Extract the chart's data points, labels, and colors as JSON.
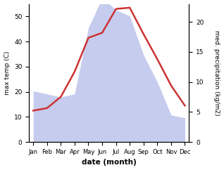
{
  "months": [
    "Jan",
    "Feb",
    "Mar",
    "Apr",
    "May",
    "Jun",
    "Jul",
    "Aug",
    "Sep",
    "Oct",
    "Nov",
    "Dec"
  ],
  "x": [
    0,
    1,
    2,
    3,
    4,
    5,
    6,
    7,
    8,
    9,
    10,
    11
  ],
  "temperature": [
    12.5,
    13.5,
    18.0,
    28.0,
    41.5,
    43.5,
    53.0,
    53.5,
    43.0,
    33.0,
    22.5,
    14.5
  ],
  "precipitation": [
    8.5,
    8.0,
    7.5,
    8.0,
    19.0,
    24.0,
    22.0,
    21.0,
    14.5,
    10.0,
    4.5,
    4.0
  ],
  "temp_color": "#cc3333",
  "precip_fill_color": "#c5ccee",
  "ylabel_left": "max temp (C)",
  "ylabel_right": "med. precipitation (kg/m2)",
  "xlabel": "date (month)",
  "ylim_left": [
    0,
    55
  ],
  "ylim_right": [
    0,
    23
  ],
  "yticks_left": [
    0,
    10,
    20,
    30,
    40,
    50
  ],
  "yticks_right": [
    0,
    5,
    10,
    15,
    20
  ],
  "background_color": "#ffffff"
}
